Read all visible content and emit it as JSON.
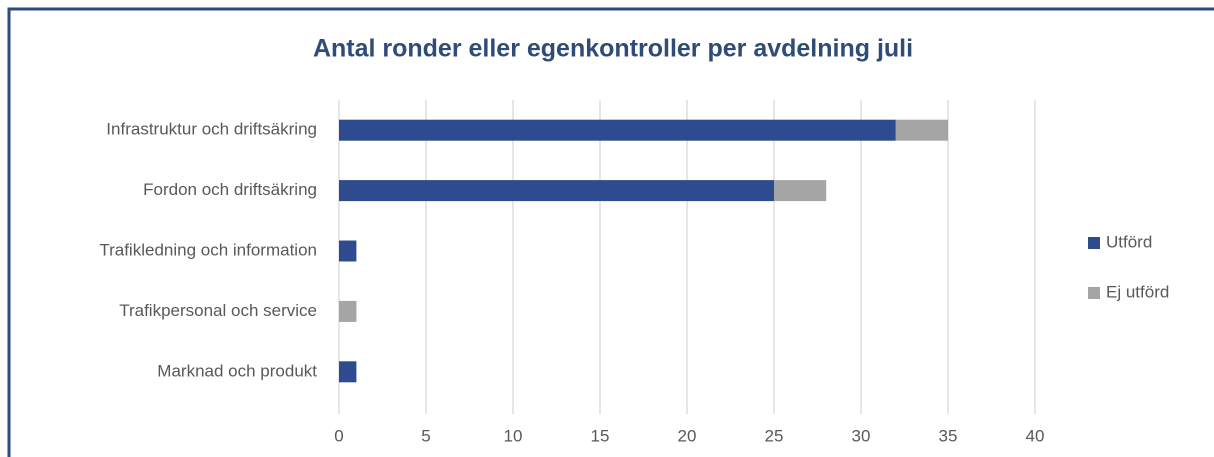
{
  "chart_data": {
    "type": "bar",
    "orientation": "horizontal",
    "stacked": true,
    "title": "Antal ronder eller egenkontroller per avdelning juli",
    "categories": [
      "Infrastruktur och driftsäkring",
      "Fordon och driftsäkring",
      "Trafikledning och information",
      "Trafikpersonal och service",
      "Marknad och produkt"
    ],
    "series": [
      {
        "name": "Utförd",
        "color": "#2f4b8f",
        "values": [
          32,
          25,
          1,
          0,
          1
        ]
      },
      {
        "name": "Ej utförd",
        "color": "#a5a5a5",
        "values": [
          3,
          3,
          0,
          1,
          0
        ]
      }
    ],
    "xlim": [
      0,
      40
    ],
    "xticks": [
      0,
      5,
      10,
      15,
      20,
      25,
      30,
      35,
      40
    ],
    "grid": true,
    "legend": "right"
  }
}
